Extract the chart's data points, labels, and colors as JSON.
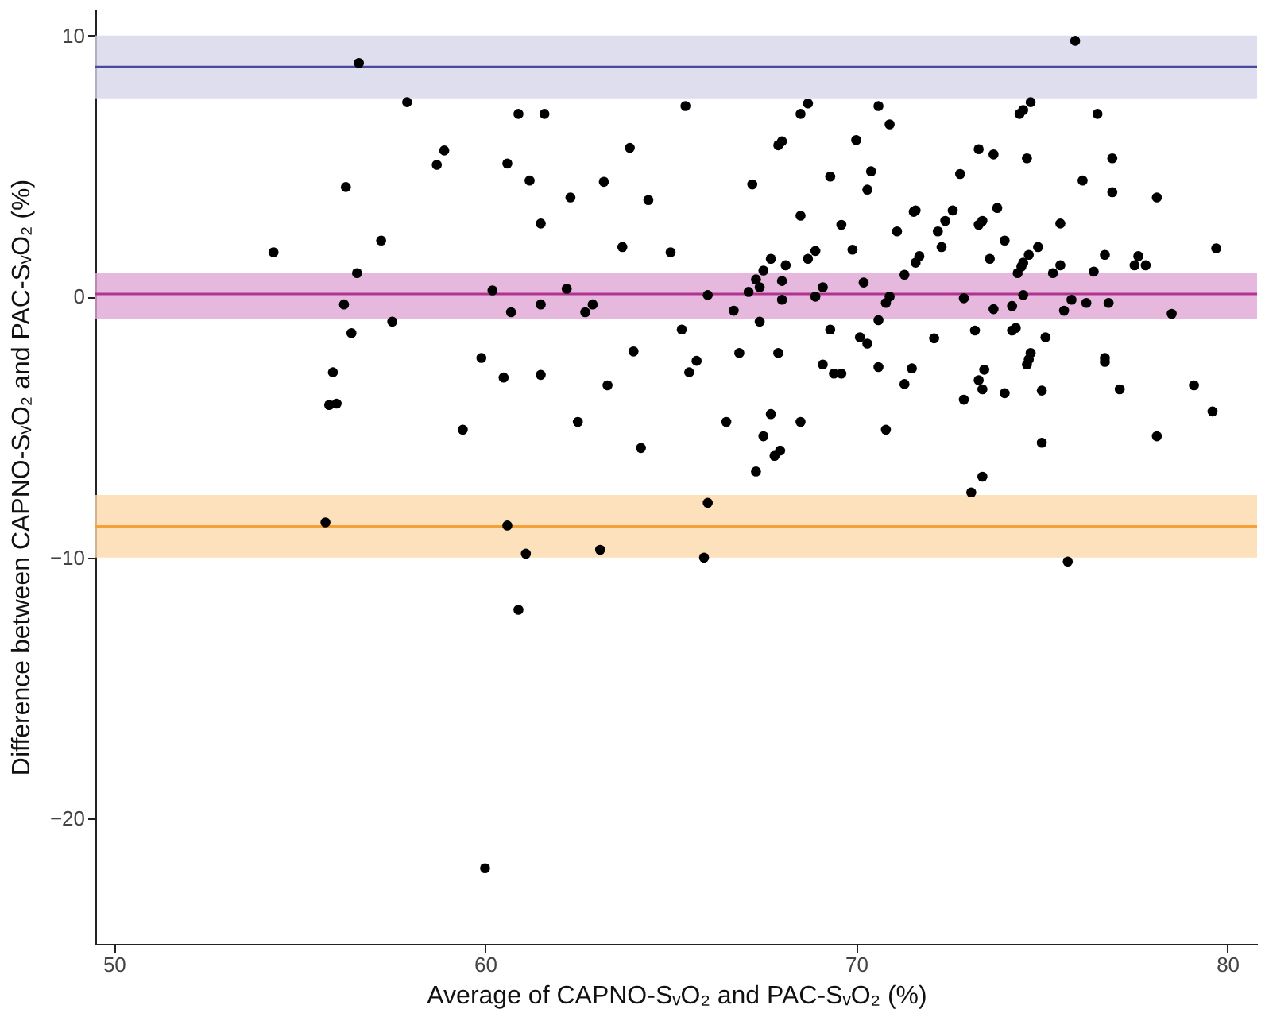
{
  "chart_data": {
    "type": "scatter",
    "xlabel": "Average of CAPNO-SᵥO₂ and PAC-SᵥO₂ (%)",
    "ylabel": "Difference between CAPNO-SᵥO₂ and PAC-SᵥO₂ (%)",
    "xlim": [
      49.5,
      80.8
    ],
    "ylim": [
      -24.8,
      11
    ],
    "xticks": [
      50,
      60,
      70,
      80
    ],
    "yticks": [
      -20,
      -10,
      0,
      10
    ],
    "grid": false,
    "legend": false,
    "marker": "circle",
    "bands": [
      {
        "axis": "y",
        "from": 7.6,
        "to": 10,
        "color": "#d6d6ea"
      },
      {
        "axis": "y",
        "from": -0.85,
        "to": 0.9,
        "color": "#e0a6d6"
      },
      {
        "axis": "y",
        "from": -10,
        "to": -7.6,
        "color": "#fcd9ab"
      }
    ],
    "ref_lines": [
      {
        "axis": "y",
        "value": 8.8,
        "color": "#4a4a9c"
      },
      {
        "axis": "y",
        "value": 0.1,
        "color": "#b0348f"
      },
      {
        "axis": "y",
        "value": -8.8,
        "color": "#f4a236"
      }
    ],
    "series": [
      {
        "color": "#000000",
        "x": [
          56.6,
          57.9,
          60.9,
          58.9,
          58.7,
          60.6,
          56.25,
          61.2,
          57.2,
          54.3,
          56.55,
          60.2,
          56.2,
          60.7,
          57.5,
          56.4,
          59.9,
          60.5,
          55.9,
          55.8,
          56.0,
          59.4,
          55.7,
          60.6,
          61.1,
          60.9,
          61.6,
          65.4,
          63.9,
          62.3,
          63.2,
          64.4,
          61.5,
          63.7,
          65.0,
          67.2,
          68.5,
          68.7,
          68.0,
          67.9,
          70.6,
          70.9,
          70.0,
          69.3,
          70.4,
          70.3,
          68.5,
          69.6,
          69.9,
          68.7,
          68.9,
          67.7,
          68.1,
          67.5,
          71.1,
          62.2,
          61.5,
          62.7,
          62.9,
          66.0,
          66.7,
          67.1,
          67.3,
          67.4,
          68.0,
          68.0,
          68.9,
          69.1,
          70.2,
          70.8,
          70.6,
          67.4,
          65.3,
          69.3,
          70.1,
          70.3,
          64.0,
          61.5,
          63.3,
          65.7,
          65.5,
          66.85,
          67.9,
          69.1,
          69.4,
          69.6,
          70.6,
          62.5,
          64.2,
          66.5,
          67.7,
          67.5,
          68.5,
          67.8,
          67.95,
          67.3,
          70.8,
          66.0,
          63.1,
          65.9,
          75.9,
          74.7,
          74.5,
          74.4,
          76.5,
          73.3,
          73.7,
          74.6,
          76.9,
          72.8,
          76.1,
          76.9,
          78.1,
          71.55,
          71.6,
          72.6,
          73.8,
          72.4,
          72.2,
          73.4,
          73.3,
          75.5,
          74.0,
          72.3,
          74.9,
          71.7,
          71.6,
          73.6,
          74.65,
          74.5,
          74.45,
          75.5,
          76.7,
          77.6,
          77.5,
          77.8,
          79.7,
          71.3,
          74.35,
          75.3,
          76.4,
          70.9,
          72.9,
          73.7,
          74.2,
          74.5,
          75.8,
          75.6,
          76.2,
          76.8,
          78.5,
          72.1,
          73.2,
          74.2,
          74.3,
          75.1,
          74.7,
          74.65,
          74.6,
          76.7,
          76.7,
          71.5,
          71.3,
          73.45,
          73.3,
          73.4,
          72.9,
          74.0,
          75.0,
          77.1,
          79.1,
          79.6,
          75.0,
          78.1,
          73.4,
          73.1,
          75.7,
          60.0
        ],
        "values": [
          8.95,
          7.45,
          7.0,
          5.6,
          5.05,
          5.1,
          4.2,
          4.45,
          2.15,
          1.7,
          0.9,
          0.24,
          -0.3,
          -0.6,
          -0.96,
          -1.4,
          -2.35,
          -3.1,
          -2.9,
          -4.15,
          -4.1,
          -5.1,
          -8.65,
          -8.77,
          -9.85,
          -12.0,
          7.0,
          7.3,
          5.7,
          3.8,
          4.4,
          3.7,
          2.8,
          1.9,
          1.7,
          4.3,
          7.0,
          7.4,
          5.95,
          5.8,
          7.3,
          6.6,
          6.0,
          4.6,
          4.8,
          4.1,
          3.1,
          2.75,
          1.8,
          1.45,
          1.75,
          1.45,
          1.2,
          1.0,
          2.5,
          0.3,
          -0.3,
          -0.6,
          -0.3,
          0.06,
          -0.54,
          0.18,
          0.66,
          0.36,
          0.6,
          -0.12,
          0.0,
          0.36,
          0.54,
          -0.24,
          -0.9,
          -0.96,
          -1.26,
          -1.26,
          -1.56,
          -1.8,
          -2.1,
          -3.0,
          -3.4,
          -2.46,
          -2.9,
          -2.16,
          -2.16,
          -2.6,
          -2.95,
          -2.95,
          -2.7,
          -4.8,
          -5.8,
          -4.8,
          -4.5,
          -5.35,
          -4.8,
          -6.1,
          -5.9,
          -6.7,
          -5.1,
          -7.9,
          -9.7,
          -10.0,
          9.8,
          7.45,
          7.15,
          7.0,
          7.0,
          5.65,
          5.45,
          5.3,
          5.3,
          4.7,
          4.45,
          4.0,
          3.8,
          3.25,
          3.3,
          3.3,
          3.4,
          2.9,
          2.5,
          2.9,
          2.75,
          2.8,
          2.15,
          1.9,
          1.9,
          1.55,
          1.3,
          1.45,
          1.6,
          1.3,
          1.15,
          1.2,
          1.6,
          1.55,
          1.2,
          1.2,
          1.85,
          0.84,
          0.9,
          0.9,
          0.96,
          0.0,
          -0.06,
          -0.48,
          -0.36,
          0.06,
          -0.12,
          -0.54,
          -0.24,
          -0.24,
          -0.66,
          -1.6,
          -1.3,
          -1.3,
          -1.2,
          -1.56,
          -2.16,
          -2.4,
          -2.6,
          -2.35,
          -2.5,
          -2.75,
          -3.35,
          -2.8,
          -3.2,
          -3.55,
          -3.95,
          -3.7,
          -3.6,
          -3.55,
          -3.4,
          -4.4,
          -5.6,
          -5.35,
          -6.9,
          -7.5,
          -10.15,
          -21.9
        ]
      }
    ]
  }
}
